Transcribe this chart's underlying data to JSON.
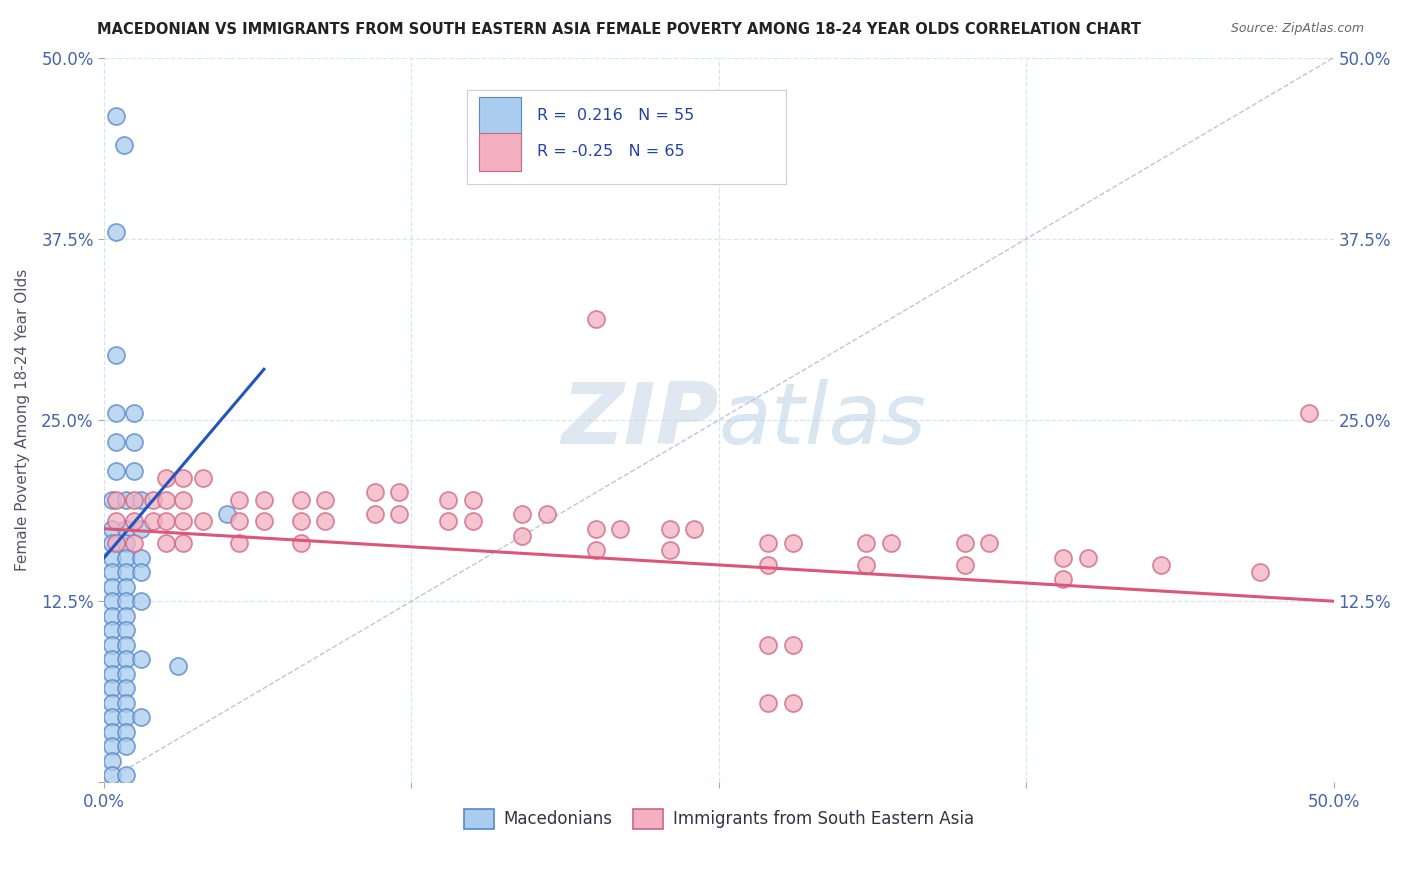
{
  "title": "MACEDONIAN VS IMMIGRANTS FROM SOUTH EASTERN ASIA FEMALE POVERTY AMONG 18-24 YEAR OLDS CORRELATION CHART",
  "source": "Source: ZipAtlas.com",
  "ylabel": "Female Poverty Among 18-24 Year Olds",
  "xlim": [
    0.0,
    0.5
  ],
  "ylim": [
    0.0,
    0.5
  ],
  "tick_vals": [
    0.0,
    0.125,
    0.25,
    0.375,
    0.5
  ],
  "xtick_labels": [
    "0.0%",
    "",
    "",
    "",
    "50.0%"
  ],
  "ytick_labels_left": [
    "",
    "12.5%",
    "25.0%",
    "37.5%",
    "50.0%"
  ],
  "ytick_labels_right": [
    "",
    "12.5%",
    "25.0%",
    "37.5%",
    "50.0%"
  ],
  "macedonian_fill": "#aaccee",
  "macedonian_edge": "#5588cc",
  "immigrant_fill": "#f4b0c0",
  "immigrant_edge": "#cc6688",
  "trend_blue": "#2255bb",
  "trend_pink": "#dd5577",
  "grid_color": "#d8e4f0",
  "diag_color": "#b0b8c8",
  "watermark_color": "#c5d5e5",
  "R_macedonian": 0.216,
  "N_macedonian": 55,
  "R_immigrant": -0.25,
  "N_immigrant": 65,
  "mac_trend_x": [
    0.0,
    0.065
  ],
  "mac_trend_y": [
    0.155,
    0.285
  ],
  "imm_trend_x": [
    0.0,
    0.5
  ],
  "imm_trend_y": [
    0.175,
    0.125
  ],
  "macedonian_points": [
    [
      0.005,
      0.46
    ],
    [
      0.008,
      0.44
    ],
    [
      0.005,
      0.38
    ],
    [
      0.005,
      0.295
    ],
    [
      0.005,
      0.255
    ],
    [
      0.012,
      0.255
    ],
    [
      0.005,
      0.235
    ],
    [
      0.012,
      0.235
    ],
    [
      0.005,
      0.215
    ],
    [
      0.012,
      0.215
    ],
    [
      0.003,
      0.195
    ],
    [
      0.009,
      0.195
    ],
    [
      0.015,
      0.195
    ],
    [
      0.003,
      0.175
    ],
    [
      0.009,
      0.175
    ],
    [
      0.015,
      0.175
    ],
    [
      0.003,
      0.165
    ],
    [
      0.009,
      0.165
    ],
    [
      0.003,
      0.155
    ],
    [
      0.009,
      0.155
    ],
    [
      0.015,
      0.155
    ],
    [
      0.003,
      0.145
    ],
    [
      0.009,
      0.145
    ],
    [
      0.015,
      0.145
    ],
    [
      0.003,
      0.135
    ],
    [
      0.009,
      0.135
    ],
    [
      0.003,
      0.125
    ],
    [
      0.009,
      0.125
    ],
    [
      0.015,
      0.125
    ],
    [
      0.003,
      0.115
    ],
    [
      0.009,
      0.115
    ],
    [
      0.003,
      0.105
    ],
    [
      0.009,
      0.105
    ],
    [
      0.003,
      0.095
    ],
    [
      0.009,
      0.095
    ],
    [
      0.003,
      0.085
    ],
    [
      0.009,
      0.085
    ],
    [
      0.015,
      0.085
    ],
    [
      0.003,
      0.075
    ],
    [
      0.009,
      0.075
    ],
    [
      0.003,
      0.065
    ],
    [
      0.009,
      0.065
    ],
    [
      0.003,
      0.055
    ],
    [
      0.009,
      0.055
    ],
    [
      0.003,
      0.045
    ],
    [
      0.009,
      0.045
    ],
    [
      0.015,
      0.045
    ],
    [
      0.003,
      0.035
    ],
    [
      0.009,
      0.035
    ],
    [
      0.003,
      0.025
    ],
    [
      0.009,
      0.025
    ],
    [
      0.003,
      0.015
    ],
    [
      0.003,
      0.005
    ],
    [
      0.009,
      0.005
    ],
    [
      0.05,
      0.185
    ],
    [
      0.03,
      0.08
    ]
  ],
  "immigrant_points": [
    [
      0.005,
      0.195
    ],
    [
      0.012,
      0.195
    ],
    [
      0.02,
      0.195
    ],
    [
      0.005,
      0.18
    ],
    [
      0.012,
      0.18
    ],
    [
      0.02,
      0.18
    ],
    [
      0.005,
      0.165
    ],
    [
      0.012,
      0.165
    ],
    [
      0.025,
      0.21
    ],
    [
      0.032,
      0.21
    ],
    [
      0.04,
      0.21
    ],
    [
      0.025,
      0.195
    ],
    [
      0.032,
      0.195
    ],
    [
      0.025,
      0.18
    ],
    [
      0.032,
      0.18
    ],
    [
      0.04,
      0.18
    ],
    [
      0.025,
      0.165
    ],
    [
      0.032,
      0.165
    ],
    [
      0.055,
      0.195
    ],
    [
      0.065,
      0.195
    ],
    [
      0.055,
      0.18
    ],
    [
      0.065,
      0.18
    ],
    [
      0.055,
      0.165
    ],
    [
      0.08,
      0.195
    ],
    [
      0.09,
      0.195
    ],
    [
      0.08,
      0.18
    ],
    [
      0.09,
      0.18
    ],
    [
      0.08,
      0.165
    ],
    [
      0.11,
      0.2
    ],
    [
      0.12,
      0.2
    ],
    [
      0.11,
      0.185
    ],
    [
      0.12,
      0.185
    ],
    [
      0.14,
      0.195
    ],
    [
      0.15,
      0.195
    ],
    [
      0.14,
      0.18
    ],
    [
      0.15,
      0.18
    ],
    [
      0.17,
      0.185
    ],
    [
      0.18,
      0.185
    ],
    [
      0.17,
      0.17
    ],
    [
      0.2,
      0.175
    ],
    [
      0.21,
      0.175
    ],
    [
      0.2,
      0.16
    ],
    [
      0.23,
      0.175
    ],
    [
      0.24,
      0.175
    ],
    [
      0.23,
      0.16
    ],
    [
      0.27,
      0.165
    ],
    [
      0.28,
      0.165
    ],
    [
      0.27,
      0.15
    ],
    [
      0.31,
      0.165
    ],
    [
      0.32,
      0.165
    ],
    [
      0.31,
      0.15
    ],
    [
      0.35,
      0.165
    ],
    [
      0.36,
      0.165
    ],
    [
      0.35,
      0.15
    ],
    [
      0.39,
      0.155
    ],
    [
      0.4,
      0.155
    ],
    [
      0.39,
      0.14
    ],
    [
      0.43,
      0.15
    ],
    [
      0.47,
      0.145
    ],
    [
      0.2,
      0.32
    ],
    [
      0.49,
      0.255
    ],
    [
      0.27,
      0.095
    ],
    [
      0.28,
      0.095
    ],
    [
      0.27,
      0.055
    ],
    [
      0.28,
      0.055
    ]
  ]
}
